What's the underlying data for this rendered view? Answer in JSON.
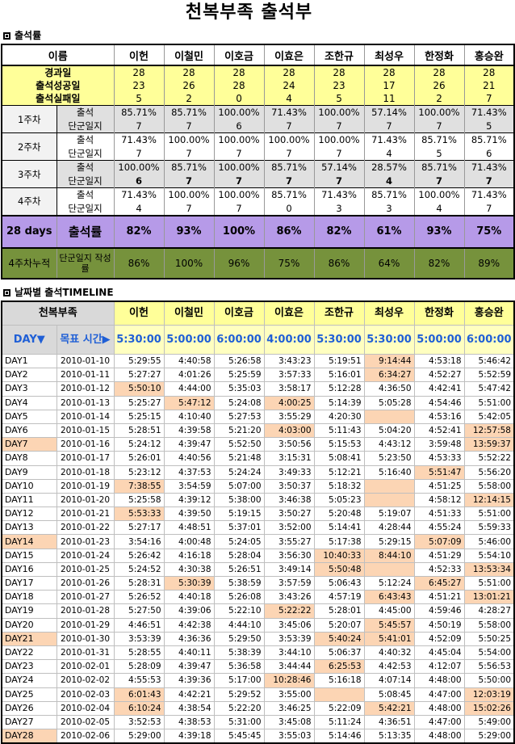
{
  "title": "천복부족 출석부",
  "section1": "출석률",
  "section2": "날짜별 출석TIMELINE",
  "names_label": "이름",
  "members": [
    "이헌",
    "이철민",
    "이호금",
    "이효은",
    "조한규",
    "최성우",
    "한정화",
    "홍승완"
  ],
  "summary": [
    {
      "label": "경과일",
      "values": [
        "28",
        "28",
        "28",
        "28",
        "28",
        "28",
        "28",
        "28"
      ]
    },
    {
      "label": "출석성공일",
      "values": [
        "23",
        "26",
        "28",
        "24",
        "23",
        "17",
        "26",
        "21"
      ]
    },
    {
      "label": "출석실패일",
      "values": [
        "5",
        "2",
        "0",
        "4",
        "5",
        "11",
        "2",
        "7"
      ]
    }
  ],
  "weeks": [
    {
      "label": "1주차",
      "attend": [
        "85.71%",
        "85.71%",
        "100.00%",
        "71.43%",
        "100.00%",
        "57.14%",
        "100.00%",
        "71.43%"
      ],
      "journal": [
        "7",
        "7",
        "6",
        "7",
        "7",
        "7",
        "7",
        "5"
      ]
    },
    {
      "label": "2주차",
      "attend": [
        "71.43%",
        "100.00%",
        "100.00%",
        "100.00%",
        "100.00%",
        "71.43%",
        "85.71%",
        "85.71%"
      ],
      "journal": [
        "7",
        "7",
        "7",
        "7",
        "7",
        "4",
        "5",
        "6"
      ]
    },
    {
      "label": "3주차",
      "attend": [
        "100.00%",
        "85.71%",
        "100.00%",
        "85.71%",
        "57.14%",
        "28.57%",
        "85.71%",
        "71.43%"
      ],
      "journal": [
        "6",
        "7",
        "7",
        "7",
        "7",
        "4",
        "7",
        "7"
      ]
    },
    {
      "label": "4주차",
      "attend": [
        "71.43%",
        "100.00%",
        "100.00%",
        "85.71%",
        "71.43%",
        "85.71%",
        "100.00%",
        "71.43%"
      ],
      "journal": [
        "4",
        "7",
        "7",
        "0",
        "3",
        "3",
        "4",
        "7"
      ]
    }
  ],
  "sub_attend": "출석",
  "sub_journal": "단군일지",
  "rate_row": {
    "label": "28 days",
    "label2": "출석률",
    "values": [
      "82%",
      "93%",
      "100%",
      "86%",
      "82%",
      "61%",
      "93%",
      "75%"
    ]
  },
  "cum_row": {
    "label": "4주차누적",
    "label2": "단군일지 작성률",
    "values": [
      "86%",
      "100%",
      "96%",
      "75%",
      "86%",
      "64%",
      "82%",
      "89%"
    ]
  },
  "timeline": {
    "group": "천복부족",
    "day_label": "DAY▼",
    "target_label": "목표 시간▶",
    "targets": [
      "5:30:00",
      "5:00:00",
      "6:00:00",
      "4:00:00",
      "5:30:00",
      "5:30:00",
      "5:00:00",
      "6:00:00"
    ],
    "rows": [
      {
        "day": "DAY1",
        "date": "2010-01-10",
        "t": [
          "5:29:55",
          "4:40:58",
          "5:26:58",
          "3:43:23",
          "5:19:51",
          "9:14:44",
          "4:53:18",
          "5:46:42"
        ]
      },
      {
        "day": "DAY2",
        "date": "2010-01-11",
        "t": [
          "5:27:27",
          "4:01:26",
          "5:25:59",
          "3:57:33",
          "5:16:01",
          "6:34:27",
          "4:52:27",
          "5:52:59"
        ]
      },
      {
        "day": "DAY3",
        "date": "2010-01-12",
        "t": [
          "5:50:10",
          "4:44:00",
          "5:35:03",
          "3:58:17",
          "5:12:28",
          "4:36:50",
          "4:42:41",
          "5:47:42"
        ]
      },
      {
        "day": "DAY4",
        "date": "2010-01-13",
        "t": [
          "5:25:27",
          "5:47:12",
          "5:24:08",
          "4:00:25",
          "5:14:39",
          "5:05:28",
          "4:54:46",
          "5:51:00"
        ]
      },
      {
        "day": "DAY5",
        "date": "2010-01-14",
        "t": [
          "5:25:15",
          "4:10:40",
          "5:27:53",
          "3:55:29",
          "4:20:30",
          "",
          "4:53:16",
          "5:42:05"
        ]
      },
      {
        "day": "DAY6",
        "date": "2010-01-15",
        "t": [
          "5:28:51",
          "4:39:58",
          "5:21:20",
          "4:03:00",
          "5:11:43",
          "5:04:20",
          "4:52:41",
          "12:57:58"
        ]
      },
      {
        "day": "DAY7",
        "date": "2010-01-16",
        "t": [
          "5:24:12",
          "4:39:47",
          "5:52:50",
          "3:50:56",
          "5:15:53",
          "4:43:12",
          "3:59:48",
          "13:59:37"
        ]
      },
      {
        "day": "DAY8",
        "date": "2010-01-17",
        "t": [
          "5:26:01",
          "4:40:56",
          "5:21:48",
          "3:15:31",
          "5:08:41",
          "5:23:50",
          "4:53:33",
          "5:52:22"
        ]
      },
      {
        "day": "DAY9",
        "date": "2010-01-18",
        "t": [
          "5:23:12",
          "4:37:53",
          "5:24:24",
          "3:49:33",
          "5:12:21",
          "5:16:40",
          "5:51:47",
          "5:56:20"
        ]
      },
      {
        "day": "DAY10",
        "date": "2010-01-19",
        "t": [
          "7:38:55",
          "3:54:59",
          "5:07:00",
          "3:50:37",
          "5:18:32",
          "",
          "4:51:25",
          "5:58:00"
        ]
      },
      {
        "day": "DAY11",
        "date": "2010-01-20",
        "t": [
          "5:25:58",
          "4:39:12",
          "5:38:00",
          "3:46:38",
          "5:05:23",
          "",
          "4:58:12",
          "12:14:15"
        ]
      },
      {
        "day": "DAY12",
        "date": "2010-01-21",
        "t": [
          "5:53:33",
          "4:39:50",
          "5:19:15",
          "3:50:27",
          "5:20:48",
          "5:19:07",
          "4:51:33",
          "5:51:00"
        ]
      },
      {
        "day": "DAY13",
        "date": "2010-01-22",
        "t": [
          "5:27:17",
          "4:48:51",
          "5:37:01",
          "3:52:00",
          "5:14:41",
          "4:28:44",
          "4:55:24",
          "5:59:33"
        ]
      },
      {
        "day": "DAY14",
        "date": "2010-01-23",
        "t": [
          "3:54:16",
          "4:00:48",
          "5:24:05",
          "3:55:27",
          "5:17:38",
          "5:29:15",
          "5:07:09",
          "5:46:00"
        ]
      },
      {
        "day": "DAY15",
        "date": "2010-01-24",
        "t": [
          "5:26:42",
          "4:16:18",
          "5:28:04",
          "3:56:30",
          "10:40:33",
          "8:44:10",
          "4:51:29",
          "5:54:10"
        ]
      },
      {
        "day": "DAY16",
        "date": "2010-01-25",
        "t": [
          "5:24:52",
          "4:30:38",
          "5:26:51",
          "3:49:14",
          "5:50:48",
          "",
          "4:52:33",
          "13:53:34"
        ]
      },
      {
        "day": "DAY17",
        "date": "2010-01-26",
        "t": [
          "5:28:31",
          "5:30:39",
          "5:38:59",
          "3:57:59",
          "5:06:43",
          "5:12:24",
          "6:45:27",
          "5:51:00"
        ]
      },
      {
        "day": "DAY18",
        "date": "2010-01-27",
        "t": [
          "5:26:52",
          "4:40:18",
          "5:26:08",
          "3:43:26",
          "4:57:19",
          "6:43:43",
          "4:51:21",
          "13:01:21"
        ]
      },
      {
        "day": "DAY19",
        "date": "2010-01-28",
        "t": [
          "5:27:50",
          "4:39:06",
          "5:22:10",
          "5:22:22",
          "5:28:01",
          "4:45:00",
          "4:59:46",
          "4:28:27"
        ]
      },
      {
        "day": "DAY20",
        "date": "2010-01-29",
        "t": [
          "4:46:51",
          "4:42:38",
          "4:44:10",
          "3:45:06",
          "5:20:07",
          "5:45:57",
          "4:50:19",
          "5:58:00"
        ]
      },
      {
        "day": "DAY21",
        "date": "2010-01-30",
        "t": [
          "3:53:39",
          "4:36:36",
          "5:29:50",
          "3:53:39",
          "5:40:24",
          "5:41:01",
          "4:52:09",
          "5:50:25"
        ]
      },
      {
        "day": "DAY22",
        "date": "2010-01-31",
        "t": [
          "5:28:55",
          "4:40:11",
          "5:38:39",
          "3:44:10",
          "5:06:37",
          "4:40:32",
          "4:45:04",
          "5:54:00"
        ]
      },
      {
        "day": "DAY23",
        "date": "2010-02-01",
        "t": [
          "5:28:09",
          "4:39:47",
          "5:36:58",
          "3:44:44",
          "6:25:53",
          "4:42:53",
          "4:12:07",
          "5:56:53"
        ]
      },
      {
        "day": "DAY24",
        "date": "2010-02-02",
        "t": [
          "4:55:53",
          "4:39:36",
          "5:17:00",
          "10:28:46",
          "5:16:18",
          "4:07:14",
          "4:48:00",
          "5:50:00"
        ]
      },
      {
        "day": "DAY25",
        "date": "2010-02-03",
        "t": [
          "6:01:43",
          "4:42:21",
          "5:29:52",
          "3:55:00",
          "",
          "5:08:45",
          "4:47:00",
          "12:03:19"
        ]
      },
      {
        "day": "DAY26",
        "date": "2010-02-04",
        "t": [
          "6:10:24",
          "4:38:54",
          "5:22:20",
          "3:46:25",
          "5:22:09",
          "5:42:21",
          "4:48:00",
          "15:02:26"
        ]
      },
      {
        "day": "DAY27",
        "date": "2010-02-05",
        "t": [
          "3:52:53",
          "4:38:53",
          "5:31:00",
          "3:45:08",
          "5:11:24",
          "4:36:51",
          "4:47:00",
          "5:49:00"
        ]
      },
      {
        "day": "DAY28",
        "date": "2010-02-06",
        "t": [
          "5:29:00",
          "4:39:18",
          "5:45:45",
          "3:55:03",
          "5:14:46",
          "5:13:35",
          "4:48:00",
          "5:29:00"
        ]
      }
    ],
    "highlight_color": "#fcd5b4"
  }
}
